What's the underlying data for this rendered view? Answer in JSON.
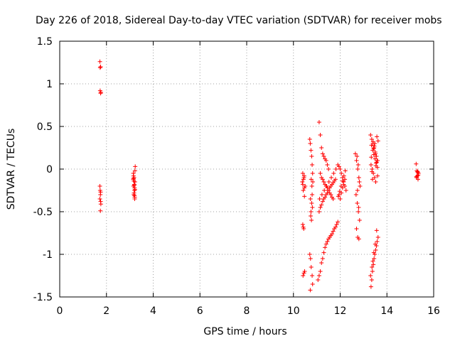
{
  "colors": {
    "series": "#ff0000",
    "grid": "#a0a0a0",
    "axis": "#000000"
  },
  "chart_data": {
    "type": "scatter",
    "title": "Day 226 of 2018, Sidereal Day-to-day VTEC variation (SDTVAR) for receiver mobs",
    "xlabel": "GPS time / hours",
    "ylabel": "SDTVAR / TECUs",
    "xlim": [
      0,
      16
    ],
    "ylim": [
      -1.5,
      1.5
    ],
    "xticks": [
      0,
      2,
      4,
      6,
      8,
      10,
      12,
      14,
      16
    ],
    "yticks": [
      -1.5,
      -1,
      -0.5,
      0,
      0.5,
      1,
      1.5
    ],
    "grid": true,
    "marker": "plus",
    "series": [
      {
        "name": "SDTVAR",
        "x": [
          1.72,
          1.75,
          1.73,
          1.76,
          1.72,
          1.75,
          1.74,
          1.72,
          1.76,
          1.74,
          1.73,
          1.75,
          1.73,
          1.75,
          3.15,
          3.18,
          3.22,
          3.16,
          3.2,
          3.17,
          3.21,
          3.15,
          3.19,
          3.23,
          3.16,
          3.2,
          3.18,
          3.22,
          3.17,
          3.21,
          3.19,
          3.22,
          3.16,
          3.2,
          10.4,
          10.45,
          10.38,
          10.5,
          10.42,
          10.47,
          10.4,
          10.44,
          10.48,
          10.41,
          10.46,
          10.4,
          10.43,
          10.47,
          10.42,
          10.45,
          10.7,
          10.72,
          10.75,
          10.78,
          10.8,
          10.82,
          10.76,
          10.79,
          10.73,
          10.81,
          10.74,
          10.77,
          10.7,
          10.73,
          10.76,
          10.8,
          10.82,
          10.72,
          10.75,
          10.78,
          10.8,
          10.83,
          11.05,
          11.1,
          11.15,
          11.2,
          11.25,
          11.3,
          11.35,
          11.4,
          11.45,
          11.5,
          11.55,
          11.6,
          11.65,
          11.7,
          11.75,
          11.8,
          11.85,
          11.9,
          11.1,
          11.15,
          11.2,
          11.25,
          11.3,
          11.35,
          11.4,
          11.45,
          11.5,
          11.55,
          11.6,
          11.65,
          11.7,
          11.75,
          11.8,
          11.1,
          11.15,
          11.2,
          11.25,
          11.3,
          11.35,
          11.4,
          11.45,
          11.5,
          11.15,
          11.2,
          11.25,
          11.3,
          11.35,
          11.4,
          11.45,
          11.5,
          11.55,
          11.6,
          11.65,
          11.7,
          11.12,
          11.22,
          11.32,
          11.42,
          11.52,
          11.62,
          11.72,
          11.82,
          11.9,
          11.95,
          12.0,
          12.05,
          12.1,
          12.15,
          12.2,
          12.25,
          11.95,
          12.0,
          12.05,
          12.1,
          12.15,
          12.2,
          11.92,
          11.98,
          12.04,
          12.1,
          12.16,
          12.22,
          12.65,
          12.7,
          12.75,
          12.8,
          12.85,
          12.68,
          12.73,
          12.78,
          12.83,
          12.7,
          12.75,
          12.8,
          12.72,
          12.77,
          12.82,
          12.74,
          12.79,
          13.3,
          13.35,
          13.4,
          13.45,
          13.5,
          13.55,
          13.6,
          13.32,
          13.37,
          13.42,
          13.47,
          13.52,
          13.57,
          13.62,
          13.34,
          13.39,
          13.44,
          13.49,
          13.54,
          13.59,
          13.36,
          13.41,
          13.46,
          13.51,
          13.56,
          13.6,
          13.33,
          13.43,
          13.53,
          13.38,
          13.48,
          13.58,
          13.32,
          13.35,
          13.38,
          13.42,
          13.45,
          13.48,
          13.52,
          13.55,
          13.58,
          13.62,
          13.3,
          13.36,
          13.4,
          13.44,
          13.5,
          13.56,
          15.25,
          15.28,
          15.3,
          15.33,
          15.35,
          15.27,
          15.31,
          15.34,
          15.26,
          15.32
        ],
        "y": [
          1.26,
          1.2,
          0.92,
          0.9,
          -0.2,
          -0.27,
          -0.3,
          -0.35,
          -0.41,
          -0.49,
          1.19,
          0.89,
          -0.25,
          -0.38,
          -0.05,
          -0.1,
          -0.15,
          -0.2,
          -0.25,
          -0.3,
          -0.33,
          -0.12,
          -0.18,
          0.03,
          -0.08,
          -0.22,
          -0.28,
          -0.02,
          -0.14,
          -0.35,
          -0.19,
          -0.24,
          -0.11,
          -0.31,
          -0.05,
          -0.1,
          -0.15,
          -0.2,
          -0.25,
          -0.32,
          -0.65,
          -0.7,
          -1.2,
          -1.25,
          -0.08,
          -0.18,
          -0.12,
          -0.22,
          -0.68,
          -1.22,
          0.35,
          0.3,
          0.22,
          0.15,
          0.05,
          -0.05,
          -0.12,
          -0.2,
          -0.35,
          -0.45,
          -0.55,
          -0.6,
          -1.0,
          -1.05,
          -1.15,
          -1.25,
          -1.35,
          -1.42,
          -0.5,
          -0.4,
          -0.3,
          -0.15,
          -1.3,
          -1.25,
          -1.2,
          -1.1,
          -1.05,
          -0.98,
          -0.92,
          -0.88,
          -0.85,
          -0.82,
          -0.8,
          -0.78,
          -0.76,
          -0.73,
          -0.7,
          -0.68,
          -0.65,
          -0.62,
          -0.5,
          -0.45,
          -0.42,
          -0.38,
          -0.35,
          -0.33,
          -0.3,
          -0.28,
          -0.25,
          -0.22,
          -0.2,
          -0.18,
          -0.16,
          -0.14,
          -0.12,
          0.55,
          0.4,
          0.25,
          0.18,
          0.15,
          0.12,
          0.1,
          0.05,
          0.0,
          -0.05,
          -0.1,
          -0.12,
          -0.15,
          -0.18,
          -0.2,
          -0.22,
          -0.25,
          -0.28,
          -0.3,
          -0.33,
          -0.35,
          -0.35,
          -0.3,
          -0.25,
          -0.2,
          -0.15,
          -0.1,
          -0.05,
          0.0,
          0.05,
          0.03,
          0.0,
          -0.05,
          -0.1,
          -0.15,
          -0.2,
          -0.25,
          -0.3,
          -0.35,
          -0.28,
          -0.22,
          -0.18,
          -0.12,
          -0.32,
          -0.26,
          -0.2,
          -0.14,
          -0.08,
          -0.02,
          0.18,
          0.1,
          0.0,
          -0.1,
          -0.2,
          -0.3,
          -0.4,
          -0.5,
          -0.6,
          -0.7,
          -0.8,
          -0.82,
          0.15,
          0.05,
          -0.15,
          -0.25,
          -0.45,
          0.4,
          0.35,
          0.3,
          0.25,
          0.2,
          0.15,
          0.1,
          0.05,
          0.0,
          -0.05,
          -0.1,
          -0.15,
          0.38,
          0.33,
          0.28,
          0.22,
          0.17,
          0.12,
          0.07,
          0.02,
          -0.03,
          0.32,
          0.27,
          0.18,
          0.08,
          -0.08,
          0.14,
          0.24,
          0.04,
          -0.12,
          0.3,
          0.1,
          -1.38,
          -1.3,
          -1.2,
          -1.12,
          -1.05,
          -1.0,
          -0.95,
          -0.9,
          -0.85,
          -0.8,
          -1.25,
          -1.15,
          -1.08,
          -0.98,
          -0.88,
          -0.72,
          0.06,
          -0.02,
          -0.08,
          -0.12,
          -0.05,
          -0.1,
          -0.03,
          -0.07,
          -0.09,
          -0.04
        ]
      }
    ]
  }
}
